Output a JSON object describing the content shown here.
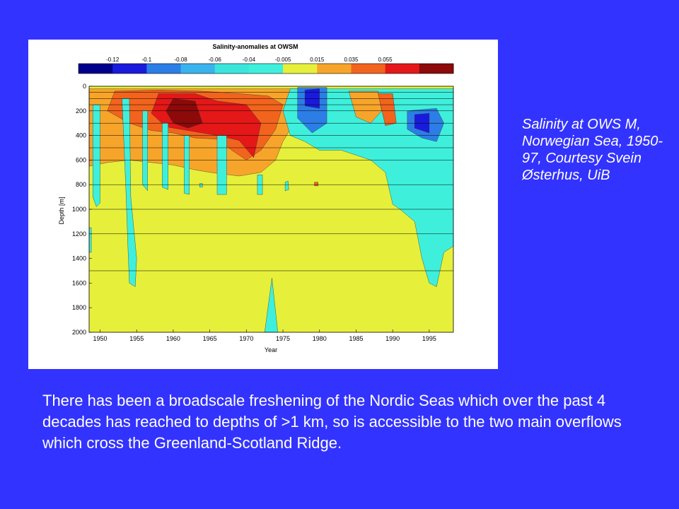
{
  "slide": {
    "background_color": "#3333ff",
    "caption": "Salinity at OWS M, Norwegian Sea, 1950-97, Courtesy Svein Østerhus, UiB",
    "body_text": "There has been a broadscale freshening of the Nordic Seas which over the past 4 decades has reached to depths of >1 km, so is accessible to the two main overflows which cross the Greenland-Scotland Ridge."
  },
  "chart_data": {
    "type": "heatmap",
    "title": "Salinity-anomalies at OWSM",
    "xlabel": "Year",
    "ylabel": "Depth [m]",
    "xlim": [
      1948.5,
      1998.3
    ],
    "ylim": [
      2000,
      0
    ],
    "x_ticks": [
      1950,
      1955,
      1960,
      1965,
      1970,
      1975,
      1980,
      1985,
      1990,
      1995
    ],
    "y_ticks": [
      0,
      200,
      400,
      600,
      800,
      1000,
      1200,
      1400,
      1600,
      1800,
      2000
    ],
    "grid_depths": [
      50,
      100,
      150,
      200,
      300,
      400,
      500,
      600,
      800,
      1000,
      1200,
      1500
    ],
    "colorbar": {
      "tick_labels": [
        "-0.12",
        "-0.1",
        "-0.08",
        "-0.06",
        "-0.04",
        "-0.005",
        "0.015",
        "0.035",
        "0.055"
      ],
      "bins": [
        {
          "color": "#00008c"
        },
        {
          "color": "#1a1adc"
        },
        {
          "color": "#2c7ee6"
        },
        {
          "color": "#39b3ee"
        },
        {
          "color": "#3ae6dc"
        },
        {
          "color": "#3ef0dc"
        },
        {
          "color": "#e6f03a"
        },
        {
          "color": "#f7a52a"
        },
        {
          "color": "#f2641d"
        },
        {
          "color": "#e41818"
        },
        {
          "color": "#8c0a0a"
        }
      ]
    },
    "regions": [
      {
        "class": "positive-anomaly",
        "color": "#f7a52a",
        "points": [
          [
            1948.5,
            20
          ],
          [
            1958,
            20
          ],
          [
            1966,
            20
          ],
          [
            1972,
            20
          ],
          [
            1978,
            20
          ],
          [
            1983,
            30
          ],
          [
            1980,
            150
          ],
          [
            1977,
            250
          ],
          [
            1975,
            450
          ],
          [
            1974,
            600
          ],
          [
            1972,
            700
          ],
          [
            1969,
            730
          ],
          [
            1965,
            700
          ],
          [
            1963,
            680
          ],
          [
            1960,
            640
          ],
          [
            1957,
            620
          ],
          [
            1954,
            600
          ],
          [
            1951,
            620
          ],
          [
            1948.5,
            650
          ]
        ]
      },
      {
        "class": "strong-positive",
        "color": "#f2641d",
        "points": [
          [
            1952,
            40
          ],
          [
            1958,
            30
          ],
          [
            1964,
            40
          ],
          [
            1969,
            60
          ],
          [
            1973,
            80
          ],
          [
            1975,
            150
          ],
          [
            1974,
            350
          ],
          [
            1972,
            520
          ],
          [
            1970,
            600
          ],
          [
            1968,
            520
          ],
          [
            1966,
            430
          ],
          [
            1963,
            420
          ],
          [
            1960,
            380
          ],
          [
            1957,
            360
          ],
          [
            1954,
            300
          ],
          [
            1951,
            200
          ]
        ]
      },
      {
        "class": "max-positive",
        "color": "#e41818",
        "points": [
          [
            1958,
            60
          ],
          [
            1963,
            60
          ],
          [
            1966,
            120
          ],
          [
            1970,
            150
          ],
          [
            1972,
            300
          ],
          [
            1971,
            580
          ],
          [
            1969,
            440
          ],
          [
            1966,
            400
          ],
          [
            1962,
            360
          ],
          [
            1959,
            330
          ],
          [
            1957,
            220
          ]
        ]
      },
      {
        "class": "peak-positive",
        "color": "#8c0a0a",
        "points": [
          [
            1960,
            100
          ],
          [
            1963,
            120
          ],
          [
            1964,
            300
          ],
          [
            1962,
            340
          ],
          [
            1960,
            300
          ],
          [
            1959,
            200
          ]
        ]
      },
      {
        "class": "fresh-anomaly-post-1975",
        "color": "#3ef0dc",
        "points": [
          [
            1976,
            20
          ],
          [
            1998.3,
            20
          ],
          [
            1998.3,
            1300
          ],
          [
            1997,
            1350
          ],
          [
            1996,
            1630
          ],
          [
            1995,
            1600
          ],
          [
            1994,
            1400
          ],
          [
            1993,
            1100
          ],
          [
            1991,
            1000
          ],
          [
            1990,
            960
          ],
          [
            1989,
            700
          ],
          [
            1987,
            600
          ],
          [
            1983,
            520
          ],
          [
            1980,
            520
          ],
          [
            1978,
            450
          ],
          [
            1976,
            400
          ],
          [
            1975,
            200
          ]
        ]
      },
      {
        "class": "fresh-core-1977",
        "color": "#2c7ee6",
        "points": [
          [
            1977,
            10
          ],
          [
            1981,
            10
          ],
          [
            1981,
            300
          ],
          [
            1979,
            380
          ],
          [
            1977,
            260
          ]
        ]
      },
      {
        "class": "fresh-core-1977-deep",
        "color": "#1a1adc",
        "points": [
          [
            1978,
            30
          ],
          [
            1980,
            20
          ],
          [
            1980,
            180
          ],
          [
            1978,
            160
          ]
        ]
      },
      {
        "class": "fresh-core-1994",
        "color": "#2c7ee6",
        "points": [
          [
            1992,
            200
          ],
          [
            1996,
            180
          ],
          [
            1997,
            300
          ],
          [
            1996,
            450
          ],
          [
            1994,
            420
          ],
          [
            1992,
            350
          ]
        ]
      },
      {
        "class": "fresh-core-1994-deep",
        "color": "#1a1adc",
        "points": [
          [
            1993,
            230
          ],
          [
            1995,
            220
          ],
          [
            1995,
            380
          ],
          [
            1993,
            340
          ]
        ]
      },
      {
        "class": "fresh-filament-1950",
        "color": "#3ef0dc",
        "points": [
          [
            1949,
            150
          ],
          [
            1950,
            150
          ],
          [
            1950,
            950
          ],
          [
            1949.5,
            980
          ],
          [
            1949,
            900
          ]
        ]
      },
      {
        "class": "fresh-filament-1953",
        "color": "#3ef0dc",
        "points": [
          [
            1953,
            100
          ],
          [
            1954,
            100
          ],
          [
            1954.2,
            900
          ],
          [
            1955,
            1400
          ],
          [
            1954.8,
            1630
          ],
          [
            1954,
            1600
          ],
          [
            1953.8,
            1300
          ],
          [
            1953.5,
            800
          ]
        ]
      },
      {
        "class": "fresh-filament-1956",
        "color": "#3ef0dc",
        "points": [
          [
            1955.8,
            200
          ],
          [
            1956.5,
            200
          ],
          [
            1956.5,
            850
          ],
          [
            1955.8,
            800
          ]
        ]
      },
      {
        "class": "fresh-filament-1959",
        "color": "#3ef0dc",
        "points": [
          [
            1958.5,
            300
          ],
          [
            1959.3,
            300
          ],
          [
            1959.3,
            840
          ],
          [
            1958.5,
            820
          ]
        ]
      },
      {
        "class": "fresh-filament-1962",
        "color": "#3ef0dc",
        "points": [
          [
            1961.5,
            400
          ],
          [
            1962.2,
            400
          ],
          [
            1962.2,
            880
          ],
          [
            1961.5,
            870
          ]
        ]
      },
      {
        "class": "fresh-filament-1967",
        "color": "#3ef0dc",
        "points": [
          [
            1966,
            400
          ],
          [
            1967.3,
            400
          ],
          [
            1967.3,
            880
          ],
          [
            1966,
            880
          ]
        ]
      },
      {
        "class": "fresh-filament-1971",
        "color": "#3ef0dc",
        "points": [
          [
            1971.5,
            720
          ],
          [
            1972.2,
            720
          ],
          [
            1972.2,
            880
          ],
          [
            1971.5,
            880
          ]
        ]
      },
      {
        "class": "fresh-tongue-1973",
        "color": "#3ef0dc",
        "points": [
          [
            1972.5,
            2000
          ],
          [
            1973.5,
            1560
          ],
          [
            1974.3,
            2000
          ]
        ]
      },
      {
        "class": "fresh-speck-1976",
        "color": "#3ef0dc",
        "points": [
          [
            1975.3,
            780
          ],
          [
            1975.7,
            770
          ],
          [
            1975.8,
            840
          ],
          [
            1975.3,
            850
          ]
        ]
      },
      {
        "class": "fresh-edge-1948",
        "color": "#3ef0dc",
        "points": [
          [
            1948.5,
            1150
          ],
          [
            1948.8,
            1150
          ],
          [
            1948.8,
            1350
          ],
          [
            1948.5,
            1350
          ]
        ]
      },
      {
        "class": "speck-1964",
        "color": "#3ef0dc",
        "points": [
          [
            1963.6,
            790
          ],
          [
            1964,
            790
          ],
          [
            1964,
            820
          ],
          [
            1963.6,
            820
          ]
        ]
      },
      {
        "class": "speck-1979",
        "color": "#f2641d",
        "points": [
          [
            1979.3,
            780
          ],
          [
            1979.8,
            780
          ],
          [
            1979.8,
            810
          ],
          [
            1979.3,
            810
          ]
        ]
      },
      {
        "class": "positive-patch-1985",
        "color": "#f7a52a",
        "points": [
          [
            1984,
            40
          ],
          [
            1988,
            40
          ],
          [
            1988.5,
            200
          ],
          [
            1987,
            300
          ],
          [
            1985,
            250
          ]
        ]
      },
      {
        "class": "positive-patch-1989",
        "color": "#f2641d",
        "points": [
          [
            1988,
            60
          ],
          [
            1990,
            60
          ],
          [
            1990.5,
            300
          ],
          [
            1989,
            320
          ]
        ]
      }
    ]
  }
}
